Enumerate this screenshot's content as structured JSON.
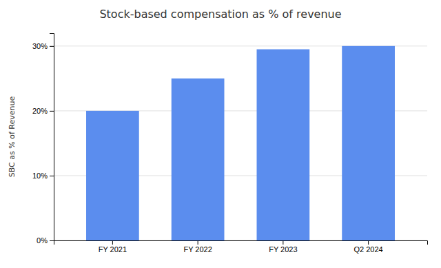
{
  "chart_data": {
    "type": "bar",
    "title": "Stock-based compensation as % of revenue",
    "ylabel": "SBC as % of Revenue",
    "categories": [
      "FY 2021",
      "FY 2022",
      "FY 2023",
      "Q2 2024"
    ],
    "values": [
      20.0,
      25.0,
      29.5,
      30.0
    ],
    "color": "#5b8dee",
    "ylim": [
      0,
      32
    ],
    "yticks": [
      {
        "value": 0,
        "label": "0%"
      },
      {
        "value": 10,
        "label": "10%"
      },
      {
        "value": 20,
        "label": "20%"
      },
      {
        "value": 30,
        "label": "30%"
      }
    ],
    "grid": true
  }
}
